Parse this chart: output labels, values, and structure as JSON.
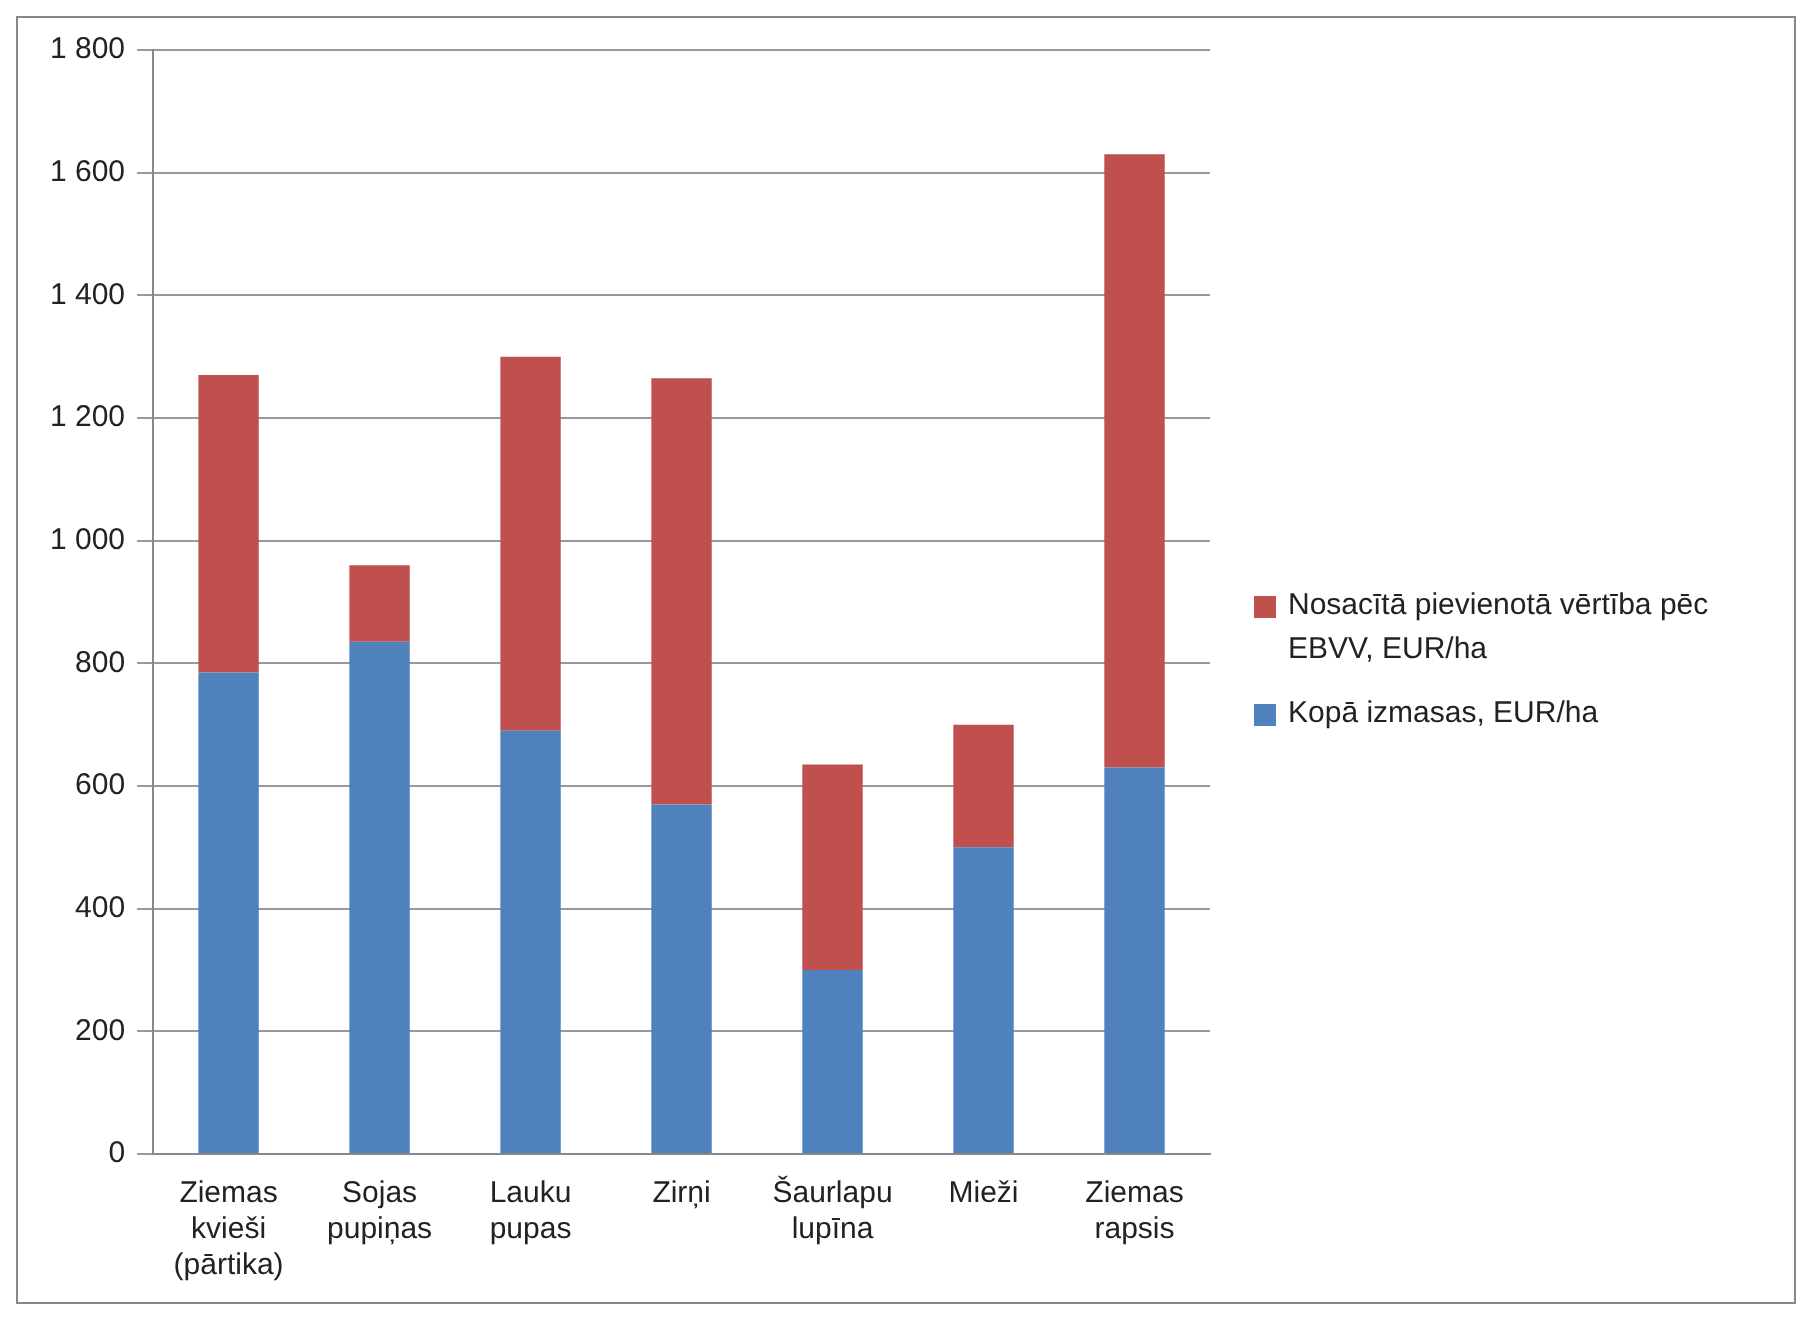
{
  "chart_data": {
    "type": "bar",
    "stacked": true,
    "categories": [
      "Ziemas kvieši (pārtika)",
      "Sojas pupiņas",
      "Lauku pupas",
      "Zirņi",
      "Šaurlapu lupīna",
      "Mieži",
      "Ziemas rapsis"
    ],
    "series": [
      {
        "name": "Kopā izmasas, EUR/ha",
        "color": "#4f81bd",
        "values": [
          785,
          835,
          690,
          570,
          300,
          500,
          630
        ]
      },
      {
        "name": "Nosacītā pievienotā vērtība pēc EBVV, EUR/ha",
        "color": "#c0504d",
        "values": [
          485,
          125,
          610,
          695,
          335,
          200,
          1000
        ]
      }
    ],
    "ylim": [
      0,
      1800
    ],
    "yticks": [
      0,
      200,
      400,
      600,
      800,
      {
        "value": 1000,
        "label": "1 000"
      },
      {
        "value": 1200,
        "label": "1 200"
      },
      {
        "value": 1400,
        "label": "1 400"
      },
      {
        "value": 1600,
        "label": "1 600"
      },
      {
        "value": 1800,
        "label": "1 800"
      }
    ],
    "grid": "y",
    "legend": "right"
  }
}
